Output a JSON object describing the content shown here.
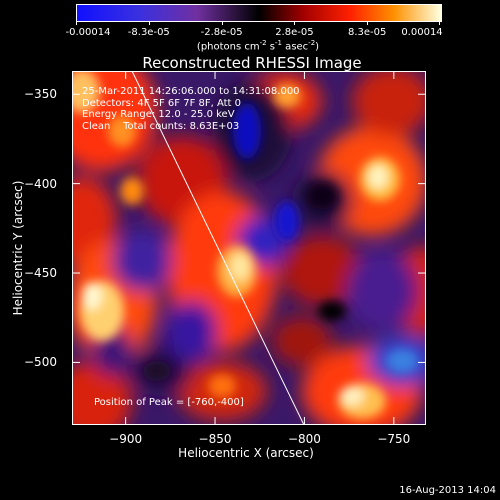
{
  "colorbar": {
    "labels": [
      "-0.00014",
      "-8.3e-05",
      "-2.8e-05",
      "2.8e-05",
      "8.3e-05",
      "0.00014"
    ],
    "units": {
      "prefix": "(photons cm",
      "exp1": "-2",
      "s": " s",
      "exp2": "-1",
      "asec": " asec",
      "exp3": "-2",
      "suffix": ")"
    }
  },
  "title": "Reconstructed RHESSI Image",
  "info": {
    "time": "25-Mar-2011 14:26:06.000 to 14:31:08.000",
    "detectors": "Detectors: 4F 5F 6F 7F 8F, Att 0",
    "energy": "Energy Range: 12.0 - 25.0 keV",
    "clean": "Clean    Total counts: 8.63E+03",
    "peak": "Position of Peak = [-760,-400]"
  },
  "axes": {
    "xlabel": "Heliocentric X (arcsec)",
    "ylabel": "Heliocentric Y (arcsec)",
    "xticks": [
      "-900",
      "-850",
      "-800",
      "-750"
    ],
    "yticks": [
      "-350",
      "-400",
      "-450",
      "-500"
    ],
    "xlim": [
      -930,
      -732
    ],
    "ylim": [
      -535,
      -337
    ]
  },
  "footer": {
    "date": "16-Aug-2013 14:04"
  }
}
